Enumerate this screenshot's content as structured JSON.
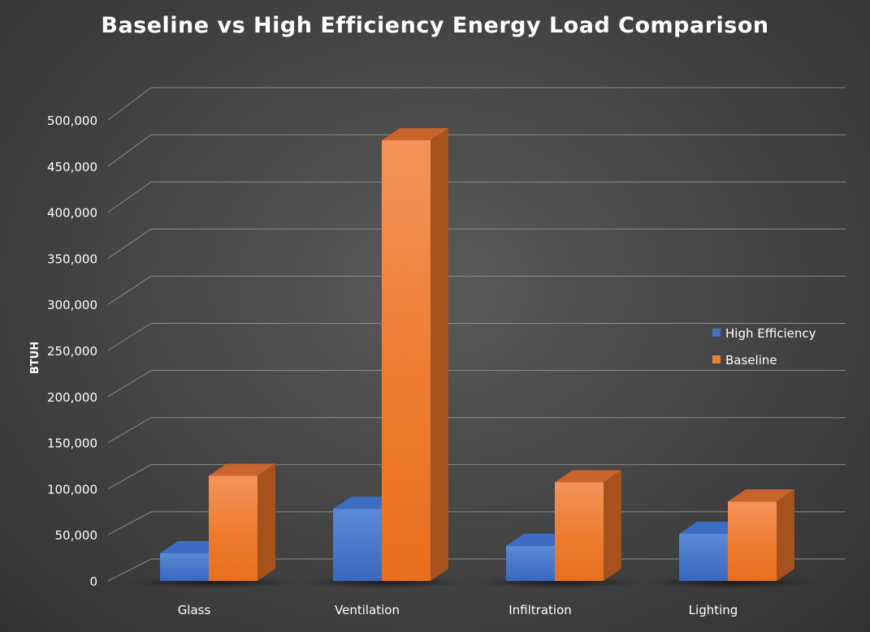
{
  "chart_data": {
    "type": "bar",
    "title": "Baseline vs High Efficiency Energy Load Comparison",
    "xlabel": "",
    "ylabel": "BTUH",
    "categories": [
      "Glass",
      "Ventilation",
      "Infiltration",
      "Lighting"
    ],
    "series": [
      {
        "name": "High Efficiency",
        "values": [
          30000,
          78000,
          38000,
          51000
        ]
      },
      {
        "name": "Baseline",
        "values": [
          114000,
          478000,
          107000,
          86000
        ]
      }
    ],
    "ylim": [
      0,
      500000
    ],
    "yticks": [
      "0",
      "50,000",
      "100,000",
      "150,000",
      "200,000",
      "250,000",
      "300,000",
      "350,000",
      "400,000",
      "450,000",
      "500,000"
    ],
    "grid": true,
    "legend": "right",
    "colors": {
      "High Efficiency": "#4472c4",
      "Baseline": "#ed7d31"
    }
  }
}
